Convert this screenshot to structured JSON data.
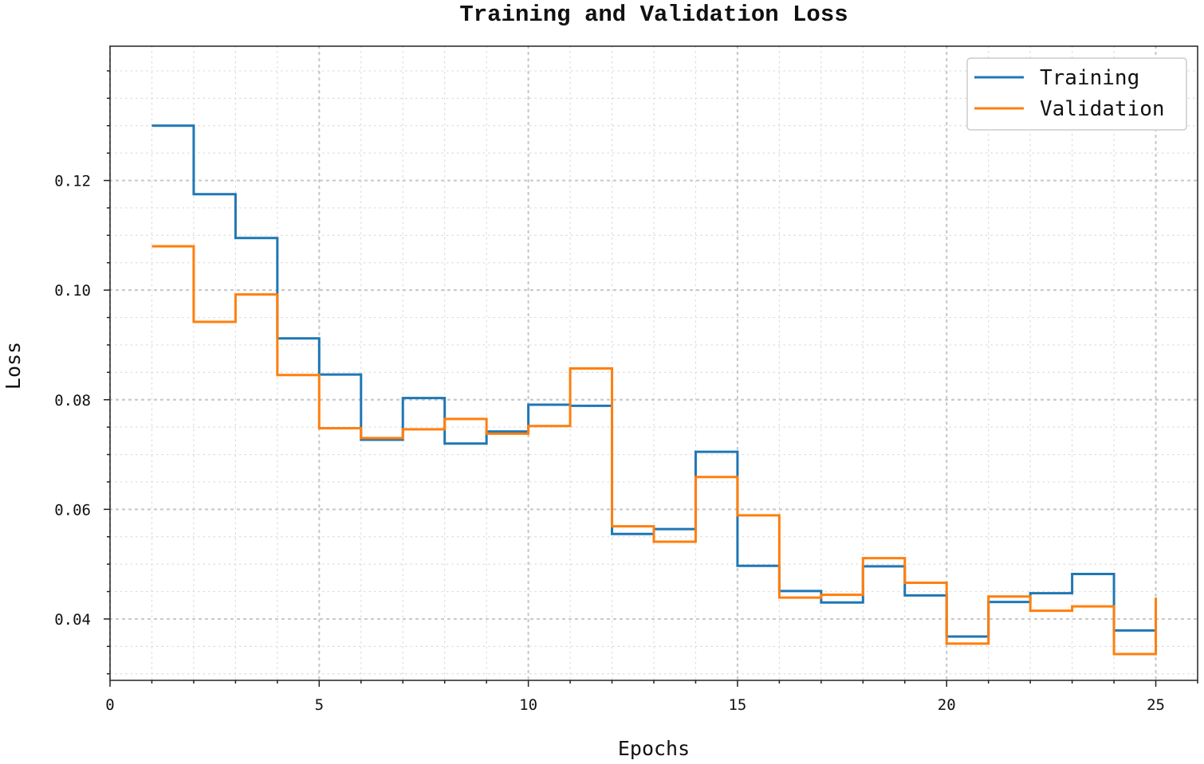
{
  "chart_data": {
    "type": "line",
    "drawstyle": "steps-post",
    "title": "Training and Validation Loss",
    "xlabel": "Epochs",
    "ylabel": "Loss",
    "xlim": [
      0,
      26
    ],
    "ylim": [
      0.0288,
      0.1445
    ],
    "xticks": [
      0,
      5,
      10,
      15,
      20,
      25
    ],
    "xtick_labels": [
      "0",
      "5",
      "10",
      "15",
      "20",
      "25"
    ],
    "yticks": [
      0.04,
      0.06,
      0.08,
      0.1,
      0.12
    ],
    "ytick_labels": [
      "0.04",
      "0.06",
      "0.08",
      "0.10",
      "0.12"
    ],
    "x_minor_step": 1,
    "y_minor_step": 0.005,
    "grid": true,
    "legend_position": "top-right",
    "x": [
      1,
      2,
      3,
      4,
      5,
      6,
      7,
      8,
      9,
      10,
      11,
      12,
      13,
      14,
      15,
      16,
      17,
      18,
      19,
      20,
      21,
      22,
      23,
      24,
      25
    ],
    "series": [
      {
        "name": "Training",
        "color": "#1f77b4",
        "values": [
          0.13,
          0.1175,
          0.1095,
          0.0912,
          0.0846,
          0.0727,
          0.0803,
          0.072,
          0.0742,
          0.0791,
          0.0789,
          0.0555,
          0.0564,
          0.0705,
          0.0497,
          0.0451,
          0.043,
          0.0496,
          0.0443,
          0.0368,
          0.0431,
          0.0447,
          0.0482,
          0.0379,
          0.0394
        ]
      },
      {
        "name": "Validation",
        "color": "#ff7f0e",
        "values": [
          0.108,
          0.0942,
          0.0992,
          0.0845,
          0.0748,
          0.073,
          0.0746,
          0.0765,
          0.0738,
          0.0752,
          0.0857,
          0.0569,
          0.0541,
          0.0659,
          0.0589,
          0.0439,
          0.0444,
          0.0511,
          0.0466,
          0.0355,
          0.0441,
          0.0415,
          0.0423,
          0.0336,
          0.0439
        ]
      }
    ]
  }
}
